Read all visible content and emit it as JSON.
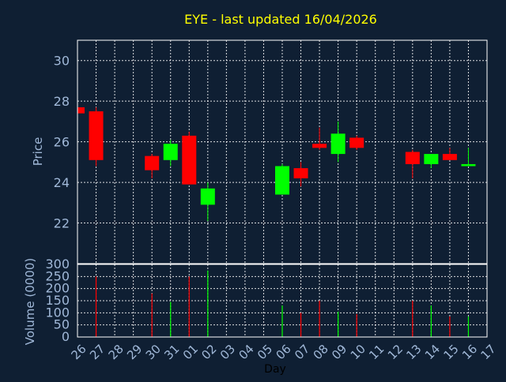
{
  "chart_data": {
    "type": "candlestick",
    "title": "EYE - last updated 16/04/2026",
    "xlabel": "Day",
    "price_axis": {
      "ylabel": "Price",
      "ylim": [
        20,
        31
      ],
      "ticks": [
        22,
        24,
        26,
        28,
        30
      ],
      "grid": true
    },
    "volume_axis": {
      "ylabel": "Volume (0000)",
      "ylim": [
        0,
        300
      ],
      "ticks": [
        0,
        50,
        100,
        150,
        200,
        250,
        300
      ],
      "grid": true
    },
    "x_ticks": [
      "26",
      "27",
      "28",
      "29",
      "30",
      "31",
      "01",
      "02",
      "03",
      "04",
      "05",
      "06",
      "07",
      "08",
      "09",
      "10",
      "11",
      "12",
      "13",
      "14",
      "15",
      "16",
      "17"
    ],
    "colors": {
      "background": "#0f1f33",
      "up": "#00ff00",
      "down": "#ff0000",
      "title": "#ffff00",
      "axis_text": "#a0b8d8",
      "grid": "#ffffff"
    },
    "candles": [
      {
        "day": "26",
        "open": 27.7,
        "high": 27.7,
        "low": 27.4,
        "close": 27.4
      },
      {
        "day": "27",
        "open": 27.5,
        "high": 27.7,
        "low": 24.8,
        "close": 25.1
      },
      {
        "day": "30",
        "open": 25.3,
        "high": 25.4,
        "low": 24.2,
        "close": 24.6
      },
      {
        "day": "31",
        "open": 25.1,
        "high": 26.1,
        "low": 24.8,
        "close": 25.9
      },
      {
        "day": "01",
        "open": 26.3,
        "high": 26.5,
        "low": 23.9,
        "close": 23.9
      },
      {
        "day": "02",
        "open": 22.9,
        "high": 24.0,
        "low": 22.1,
        "close": 23.7
      },
      {
        "day": "06",
        "open": 23.4,
        "high": 24.9,
        "low": 23.4,
        "close": 24.8
      },
      {
        "day": "07",
        "open": 24.7,
        "high": 25.0,
        "low": 23.8,
        "close": 24.2
      },
      {
        "day": "08",
        "open": 25.9,
        "high": 26.7,
        "low": 25.6,
        "close": 25.7
      },
      {
        "day": "09",
        "open": 25.4,
        "high": 27.0,
        "low": 25.0,
        "close": 26.4
      },
      {
        "day": "10",
        "open": 26.2,
        "high": 26.3,
        "low": 25.6,
        "close": 25.7
      },
      {
        "day": "13",
        "open": 25.5,
        "high": 25.6,
        "low": 24.2,
        "close": 24.9
      },
      {
        "day": "14",
        "open": 24.9,
        "high": 25.4,
        "low": 24.7,
        "close": 25.4
      },
      {
        "day": "15",
        "open": 25.4,
        "high": 25.7,
        "low": 25.1,
        "close": 25.1
      },
      {
        "day": "16",
        "open": 24.8,
        "high": 25.7,
        "low": 24.8,
        "close": 24.9
      }
    ],
    "volume": [
      {
        "day": "27",
        "value": 250,
        "direction": "down"
      },
      {
        "day": "30",
        "value": 180,
        "direction": "down"
      },
      {
        "day": "31",
        "value": 145,
        "direction": "up"
      },
      {
        "day": "01",
        "value": 250,
        "direction": "down"
      },
      {
        "day": "02",
        "value": 275,
        "direction": "up"
      },
      {
        "day": "06",
        "value": 130,
        "direction": "up"
      },
      {
        "day": "07",
        "value": 100,
        "direction": "down"
      },
      {
        "day": "08",
        "value": 150,
        "direction": "down"
      },
      {
        "day": "09",
        "value": 105,
        "direction": "up"
      },
      {
        "day": "10",
        "value": 95,
        "direction": "down"
      },
      {
        "day": "13",
        "value": 150,
        "direction": "down"
      },
      {
        "day": "14",
        "value": 130,
        "direction": "up"
      },
      {
        "day": "15",
        "value": 85,
        "direction": "down"
      },
      {
        "day": "16",
        "value": 85,
        "direction": "up"
      }
    ]
  }
}
